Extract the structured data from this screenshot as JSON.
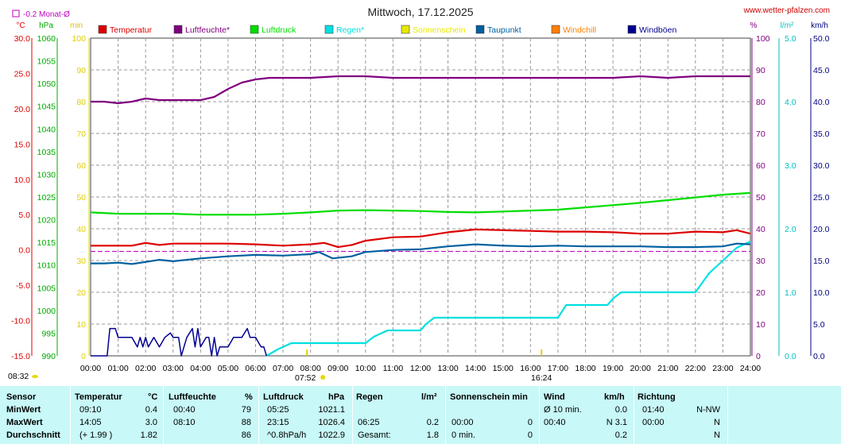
{
  "header": {
    "title": "Mittwoch, 17.12.2025",
    "site": "www.wetter-pfalzen.com",
    "month_avg_note": "-0.2 Monat-Ø",
    "unit_c": "°C",
    "unit_hpa": "hPa",
    "unit_min": "min",
    "unit_pct": "%",
    "unit_lm2": "l/m²",
    "unit_kmh": "km/h"
  },
  "legend": [
    {
      "label": "Temperatur",
      "color": "#dd0000"
    },
    {
      "label": "Luftfeuchte*",
      "color": "#800080"
    },
    {
      "label": "Luftdruck",
      "color": "#00dd00"
    },
    {
      "label": "Regen*",
      "color": "#00e0e0"
    },
    {
      "label": "Sonnenschein",
      "color": "#e8e800"
    },
    {
      "label": "Taupunkt",
      "color": "#0060a0"
    },
    {
      "label": "Windchill",
      "color": "#ff8000"
    },
    {
      "label": "Windböen",
      "color": "#000090"
    }
  ],
  "chart_data": {
    "type": "line",
    "x_labels": [
      "00:00",
      "01:00",
      "02:00",
      "03:00",
      "04:00",
      "05:00",
      "06:00",
      "07:00",
      "08:00",
      "09:00",
      "10:00",
      "11:00",
      "12:00",
      "13:00",
      "14:00",
      "15:00",
      "16:00",
      "17:00",
      "18:00",
      "19:00",
      "20:00",
      "21:00",
      "22:00",
      "23:00",
      "24:00"
    ],
    "axes": {
      "temp": {
        "label": "°C",
        "ticks": [
          "30.0",
          "25.0",
          "20.0",
          "15.0",
          "10.0",
          "5.0",
          "0.0",
          "-5.0",
          "-10.0",
          "-15.0"
        ],
        "range": [
          -15,
          30
        ],
        "color": "#dd0000"
      },
      "pressure": {
        "label": "hPa",
        "ticks": [
          "1060",
          "1055",
          "1050",
          "1045",
          "1040",
          "1035",
          "1030",
          "1025",
          "1020",
          "1015",
          "1010",
          "1005",
          "1000",
          "995",
          "990"
        ],
        "range": [
          990,
          1060
        ],
        "color": "#00aa00"
      },
      "sun": {
        "label": "min",
        "ticks": [
          "100",
          "90",
          "80",
          "70",
          "60",
          "50",
          "40",
          "30",
          "20",
          "10",
          "0"
        ],
        "range": [
          0,
          100
        ],
        "color": "#e8e800"
      },
      "humidity": {
        "label": "%",
        "ticks": [
          "100",
          "90",
          "80",
          "70",
          "60",
          "50",
          "40",
          "30",
          "20",
          "10",
          "0"
        ],
        "range": [
          0,
          100
        ],
        "color": "#800080"
      },
      "rain": {
        "label": "l/m²",
        "ticks": [
          "5.0",
          "4.0",
          "3.0",
          "2.0",
          "1.0",
          "0.0"
        ],
        "range": [
          0,
          5
        ],
        "color": "#00e0e0"
      },
      "wind": {
        "label": "km/h",
        "ticks": [
          "50.0",
          "45.0",
          "40.0",
          "35.0",
          "30.0",
          "25.0",
          "20.0",
          "15.0",
          "10.0",
          "5.0",
          "0.0"
        ],
        "range": [
          0,
          50
        ],
        "color": "#000090"
      }
    },
    "sunrise": "07:52",
    "sunset": "16:24",
    "sunrise_h": 7.87,
    "sunset_h": 16.4,
    "month_avg_temp": -0.2,
    "series": [
      {
        "name": "Temperatur",
        "axis": "temp",
        "color": "#dd0000",
        "x": [
          0,
          0.5,
          1,
          1.5,
          2,
          2.5,
          3,
          4,
          5,
          6,
          7,
          8,
          8.5,
          9,
          9.5,
          10,
          11,
          12,
          13,
          14,
          15,
          16,
          17,
          18,
          19,
          20,
          21,
          22,
          23,
          23.5,
          24
        ],
        "y": [
          0.6,
          0.6,
          0.6,
          0.6,
          1.0,
          0.7,
          0.9,
          0.9,
          0.9,
          0.8,
          0.6,
          0.8,
          1.0,
          0.4,
          0.7,
          1.3,
          1.8,
          1.9,
          2.5,
          2.9,
          2.8,
          2.7,
          2.6,
          2.6,
          2.5,
          2.3,
          2.3,
          2.6,
          2.5,
          2.8,
          2.3
        ]
      },
      {
        "name": "Luftfeuchte*",
        "axis": "humidity",
        "color": "#800080",
        "x": [
          0,
          0.5,
          1,
          1.5,
          2,
          2.5,
          3,
          4,
          4.5,
          5,
          5.5,
          6,
          6.5,
          7,
          8,
          9,
          10,
          11,
          12,
          13,
          14,
          15,
          16,
          17,
          18,
          19,
          20,
          21,
          22,
          23,
          24
        ],
        "y": [
          80,
          80,
          79.5,
          80,
          81,
          80.5,
          80.5,
          80.5,
          81.5,
          84,
          86,
          87,
          87.5,
          87.5,
          87.5,
          88,
          88,
          87.5,
          87.5,
          87.5,
          87.5,
          87.5,
          87.5,
          87.5,
          87.5,
          87.5,
          88,
          87.5,
          88,
          88,
          88
        ]
      },
      {
        "name": "Luftdruck",
        "axis": "pressure",
        "color": "#00dd00",
        "x": [
          0,
          1,
          2,
          3,
          4,
          5,
          6,
          7,
          8,
          9,
          10,
          11,
          12,
          13,
          14,
          15,
          16,
          17,
          18,
          19,
          20,
          21,
          22,
          23,
          24
        ],
        "y": [
          1021.6,
          1021.3,
          1021.3,
          1021.3,
          1021.1,
          1021.1,
          1021.1,
          1021.3,
          1021.6,
          1022.0,
          1022.1,
          1022.0,
          1021.9,
          1021.7,
          1021.6,
          1021.8,
          1022.0,
          1022.2,
          1022.7,
          1023.2,
          1023.7,
          1024.3,
          1024.9,
          1025.5,
          1025.9
        ]
      },
      {
        "name": "Regen*",
        "axis": "rain",
        "color": "#00e0e0",
        "x": [
          6.4,
          6.8,
          7.3,
          8,
          9,
          10,
          10.3,
          10.8,
          11,
          11.5,
          12,
          12.2,
          12.5,
          13,
          14,
          15,
          16,
          16.5,
          17,
          17.3,
          17.8,
          18,
          18.8,
          19,
          19.3,
          19.8,
          20,
          21,
          22,
          22.5,
          23,
          23.5,
          24
        ],
        "y": [
          0,
          0.1,
          0.2,
          0.2,
          0.2,
          0.2,
          0.3,
          0.4,
          0.4,
          0.4,
          0.4,
          0.5,
          0.6,
          0.6,
          0.6,
          0.6,
          0.6,
          0.6,
          0.6,
          0.8,
          0.8,
          0.8,
          0.8,
          0.9,
          1.0,
          1.0,
          1.0,
          1.0,
          1.0,
          1.3,
          1.5,
          1.7,
          1.8
        ]
      },
      {
        "name": "Taupunkt",
        "axis": "temp",
        "color": "#0060a0",
        "x": [
          0,
          0.5,
          1,
          1.5,
          2,
          2.5,
          3,
          4,
          5,
          6,
          7,
          8,
          8.3,
          8.8,
          9.5,
          10,
          11,
          12,
          13,
          14,
          15,
          16,
          17,
          18,
          19,
          20,
          21,
          22,
          23,
          23.5,
          24
        ],
        "y": [
          -1.9,
          -1.9,
          -1.8,
          -2.0,
          -1.7,
          -1.4,
          -1.6,
          -1.2,
          -0.9,
          -0.7,
          -0.8,
          -0.6,
          -0.3,
          -1.2,
          -0.9,
          -0.3,
          0.0,
          0.1,
          0.5,
          0.8,
          0.6,
          0.5,
          0.6,
          0.5,
          0.5,
          0.5,
          0.4,
          0.4,
          0.5,
          0.9,
          0.8
        ]
      },
      {
        "name": "Windböen",
        "axis": "wind",
        "color": "#000090",
        "x": [
          0,
          0.6,
          0.7,
          0.9,
          1,
          1.2,
          1.3,
          1.5,
          1.7,
          1.8,
          1.9,
          2,
          2.1,
          2.3,
          2.5,
          2.7,
          2.9,
          3,
          3.2,
          3.3,
          3.5,
          3.7,
          3.8,
          3.9,
          4,
          4.2,
          4.3,
          4.4,
          4.5,
          4.6,
          4.7,
          5,
          5.2,
          5.3,
          5.5,
          5.7,
          5.8,
          6,
          6.2,
          6.3,
          6.4
        ],
        "y": [
          0,
          0,
          4.3,
          4.3,
          2.9,
          2.9,
          2.9,
          2.9,
          1.4,
          2.9,
          1.4,
          2.9,
          1.4,
          2.9,
          1.4,
          2.9,
          3.6,
          2.9,
          2.9,
          0,
          2.9,
          4.3,
          1.4,
          4.3,
          1.4,
          2.9,
          2.9,
          0,
          2.9,
          0,
          1.4,
          1.4,
          2.9,
          2.9,
          2.9,
          4.3,
          2.9,
          2.9,
          1.4,
          1.4,
          0
        ]
      }
    ]
  },
  "stats_table": {
    "headers": {
      "sensor": "Sensor",
      "temperatur": "Temperatur",
      "temp_unit": "°C",
      "luftfeuchte": "Luftfeuchte",
      "feuchte_unit": "%",
      "luftdruck": "Luftdruck",
      "druck_unit": "hPa",
      "regen": "Regen",
      "regen_unit": "l/m²",
      "sonne": "Sonnenschein min",
      "wind": "Wind",
      "wind_unit": "km/h",
      "richtung": "Richtung"
    },
    "rows": [
      {
        "label": "MinWert",
        "t_time": "09:10",
        "t_val": "0.4",
        "h_time": "00:40",
        "h_val": "79",
        "p_time": "05:25",
        "p_val": "1021.1",
        "r_time": "",
        "r_val": "",
        "s_time": "",
        "s_val": "",
        "w_time": "Ø 10 min.",
        "w_val": "0.0",
        "d_time": "01:40",
        "d_val": "N-NW"
      },
      {
        "label": "MaxWert",
        "t_time": "14:05",
        "t_val": "3.0",
        "h_time": "08:10",
        "h_val": "88",
        "p_time": "23:15",
        "p_val": "1026.4",
        "r_time": "06:25",
        "r_val": "0.2",
        "s_time": "00:00",
        "s_val": "0",
        "w_time": "00:40",
        "w_val": "N 3.1",
        "d_time": "00:00",
        "d_val": "N"
      },
      {
        "label": "Durchschnitt",
        "t_time": "(+ 1.99 )",
        "t_val": "1.82",
        "h_time": "",
        "h_val": "86",
        "p_time": "^0.8hPa/h",
        "p_val": "1022.9",
        "r_time": "Gesamt:",
        "r_val": "1.8",
        "s_time": "0 min.",
        "s_val": "0",
        "w_time": "",
        "w_val": "0.2",
        "d_time": "",
        "d_val": "N"
      }
    ]
  }
}
